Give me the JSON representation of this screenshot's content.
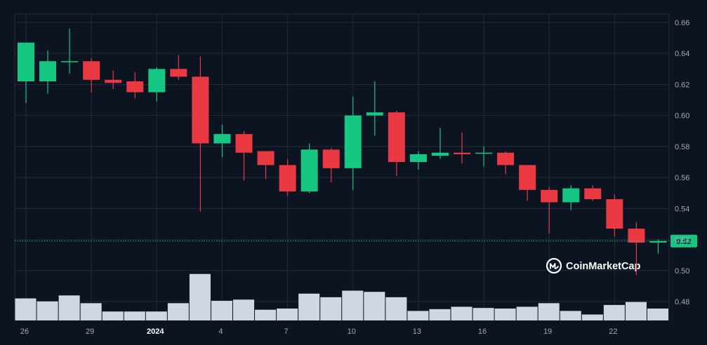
{
  "watermark": {
    "text": "CoinMarketCap",
    "icon": "coinmarketcap-logo-icon"
  },
  "colors": {
    "background": "#0d1421",
    "grid": "#222a3a",
    "up": "#16c784",
    "down": "#ea3943",
    "volume": "#cfd6e4",
    "price_line": "#16c784",
    "axis_text": "#a1a7bb"
  },
  "chart_data": {
    "type": "candlestick",
    "y_range": [
      0.47,
      0.67
    ],
    "y_ticks": [
      "0.48",
      "0.50",
      "0.52",
      "0.54",
      "0.56",
      "0.58",
      "0.60",
      "0.62",
      "0.64",
      "0.66"
    ],
    "x_ticks": [
      {
        "label": "26",
        "index": 0
      },
      {
        "label": "29",
        "index": 3
      },
      {
        "label": "2024",
        "index": 6,
        "bold": true
      },
      {
        "label": "4",
        "index": 9
      },
      {
        "label": "7",
        "index": 12
      },
      {
        "label": "10",
        "index": 15
      },
      {
        "label": "13",
        "index": 18
      },
      {
        "label": "16",
        "index": 21
      },
      {
        "label": "19",
        "index": 24
      },
      {
        "label": "22",
        "index": 27
      }
    ],
    "current_price": {
      "label": "0.52",
      "value": 0.519
    },
    "volume_relative": [
      0.37,
      0.32,
      0.42,
      0.29,
      0.15,
      0.15,
      0.15,
      0.29,
      0.78,
      0.33,
      0.35,
      0.18,
      0.2,
      0.45,
      0.39,
      0.5,
      0.48,
      0.39,
      0.16,
      0.19,
      0.23,
      0.21,
      0.2,
      0.23,
      0.29,
      0.16,
      0.1,
      0.26,
      0.31,
      0.2
    ],
    "candles": [
      {
        "o": 0.622,
        "h": 0.647,
        "l": 0.608,
        "c": 0.647
      },
      {
        "o": 0.622,
        "h": 0.642,
        "l": 0.614,
        "c": 0.635
      },
      {
        "o": 0.635,
        "h": 0.656,
        "l": 0.627,
        "c": 0.635
      },
      {
        "o": 0.635,
        "h": 0.637,
        "l": 0.615,
        "c": 0.623
      },
      {
        "o": 0.623,
        "h": 0.629,
        "l": 0.617,
        "c": 0.621
      },
      {
        "o": 0.622,
        "h": 0.628,
        "l": 0.611,
        "c": 0.615
      },
      {
        "o": 0.615,
        "h": 0.631,
        "l": 0.609,
        "c": 0.63
      },
      {
        "o": 0.63,
        "h": 0.639,
        "l": 0.623,
        "c": 0.625
      },
      {
        "o": 0.625,
        "h": 0.638,
        "l": 0.538,
        "c": 0.582
      },
      {
        "o": 0.582,
        "h": 0.594,
        "l": 0.573,
        "c": 0.588
      },
      {
        "o": 0.588,
        "h": 0.59,
        "l": 0.558,
        "c": 0.576
      },
      {
        "o": 0.577,
        "h": 0.577,
        "l": 0.559,
        "c": 0.568
      },
      {
        "o": 0.568,
        "h": 0.572,
        "l": 0.548,
        "c": 0.551
      },
      {
        "o": 0.551,
        "h": 0.582,
        "l": 0.55,
        "c": 0.578
      },
      {
        "o": 0.578,
        "h": 0.579,
        "l": 0.557,
        "c": 0.566
      },
      {
        "o": 0.566,
        "h": 0.612,
        "l": 0.552,
        "c": 0.6
      },
      {
        "o": 0.6,
        "h": 0.622,
        "l": 0.587,
        "c": 0.602
      },
      {
        "o": 0.602,
        "h": 0.603,
        "l": 0.561,
        "c": 0.57
      },
      {
        "o": 0.57,
        "h": 0.577,
        "l": 0.565,
        "c": 0.575
      },
      {
        "o": 0.574,
        "h": 0.592,
        "l": 0.572,
        "c": 0.576
      },
      {
        "o": 0.576,
        "h": 0.589,
        "l": 0.569,
        "c": 0.575
      },
      {
        "o": 0.576,
        "h": 0.58,
        "l": 0.567,
        "c": 0.576
      },
      {
        "o": 0.576,
        "h": 0.577,
        "l": 0.562,
        "c": 0.568
      },
      {
        "o": 0.568,
        "h": 0.568,
        "l": 0.545,
        "c": 0.552
      },
      {
        "o": 0.552,
        "h": 0.554,
        "l": 0.524,
        "c": 0.544
      },
      {
        "o": 0.544,
        "h": 0.555,
        "l": 0.539,
        "c": 0.553
      },
      {
        "o": 0.553,
        "h": 0.555,
        "l": 0.545,
        "c": 0.546
      },
      {
        "o": 0.546,
        "h": 0.549,
        "l": 0.522,
        "c": 0.527
      },
      {
        "o": 0.527,
        "h": 0.531,
        "l": 0.497,
        "c": 0.518
      },
      {
        "o": 0.518,
        "h": 0.52,
        "l": 0.511,
        "c": 0.519
      }
    ]
  }
}
